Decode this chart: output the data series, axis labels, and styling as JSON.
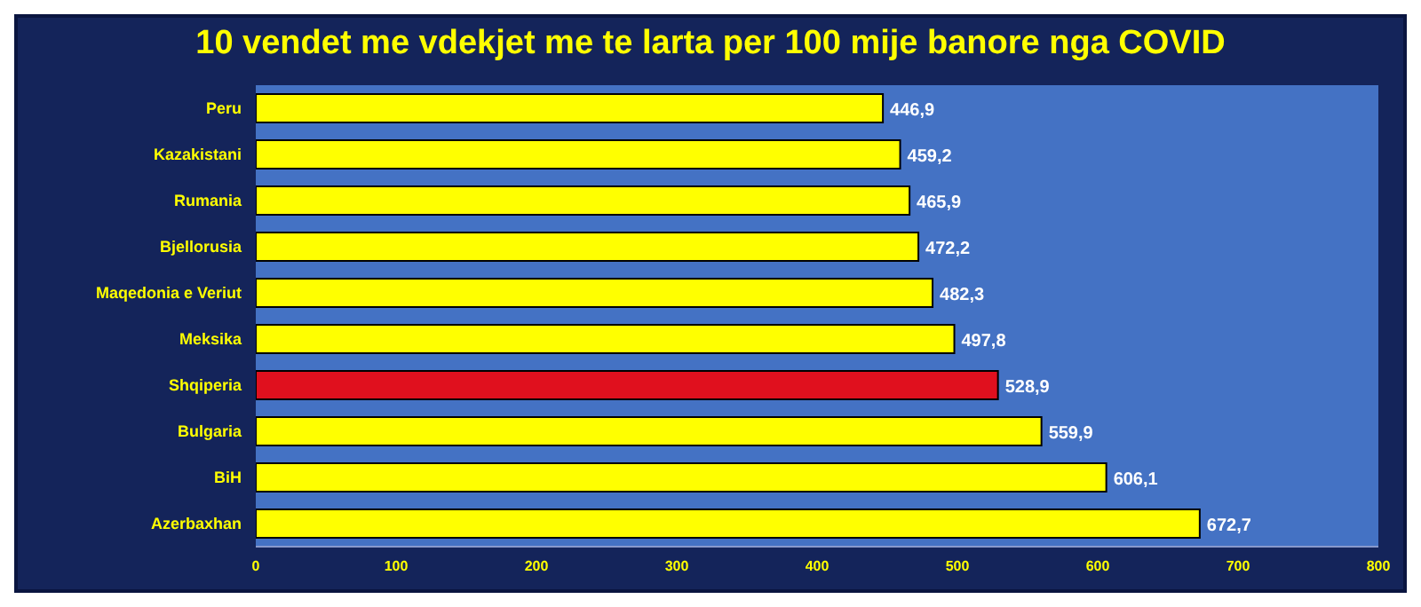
{
  "chart_data": {
    "type": "bar",
    "orientation": "horizontal",
    "title": "10 vendet me vdekjet me te larta per 100 mije banore nga COVID",
    "categories": [
      "Peru",
      "Kazakistani",
      "Rumania",
      "Bjellorusia",
      "Maqedonia e Veriut",
      "Meksika",
      "Shqiperia",
      "Bulgaria",
      "BiH",
      "Azerbaxhan"
    ],
    "values": [
      446.9,
      459.2,
      465.9,
      472.2,
      482.3,
      497.8,
      528.9,
      559.9,
      606.1,
      672.7
    ],
    "value_labels": [
      "446,9",
      "459,2",
      "465,9",
      "472,2",
      "482,3",
      "497,8",
      "528,9",
      "559,9",
      "606,1",
      "672,7"
    ],
    "colors": [
      "#ffff00",
      "#ffff00",
      "#ffff00",
      "#ffff00",
      "#ffff00",
      "#ffff00",
      "#e0101e",
      "#ffff00",
      "#ffff00",
      "#ffff00"
    ],
    "xlim": [
      0,
      800
    ],
    "xticks": [
      0,
      100,
      200,
      300,
      400,
      500,
      600,
      700,
      800
    ],
    "grid": false
  }
}
